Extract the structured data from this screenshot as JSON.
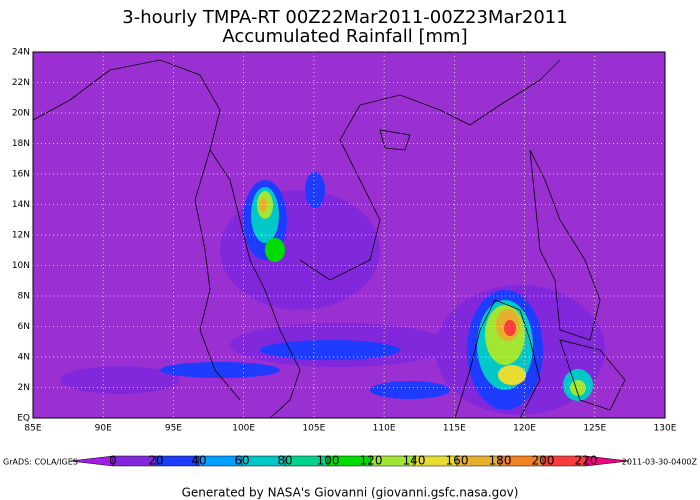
{
  "title": [
    "3-hourly TMPA-RT 00Z22Mar2011-00Z23Mar2011",
    "Accumulated Rainfall [mm]"
  ],
  "map": {
    "lat_labels": [
      "EQ",
      "2N",
      "4N",
      "6N",
      "8N",
      "10N",
      "12N",
      "14N",
      "16N",
      "18N",
      "20N",
      "22N",
      "24N"
    ],
    "lon_labels": [
      "85E",
      "90E",
      "95E",
      "100E",
      "105E",
      "110E",
      "115E",
      "120E",
      "125E",
      "130E"
    ]
  },
  "colorbar": {
    "labels": [
      0,
      20,
      40,
      60,
      80,
      100,
      120,
      140,
      160,
      180,
      200,
      220
    ],
    "colors": [
      "#a01ee6",
      "#8228dc",
      "#1e3cff",
      "#00a0ff",
      "#00c8c8",
      "#00d28c",
      "#00dc00",
      "#a0e632",
      "#e6dc32",
      "#e6af2d",
      "#f08228",
      "#fa3c3c",
      "#f00082"
    ]
  },
  "footer": {
    "left": "GrADS: COLA/IGES",
    "right": "2011-03-30-0400Z",
    "credit": "Generated by NASA's Giovanni (giovanni.gsfc.nasa.gov)"
  }
}
